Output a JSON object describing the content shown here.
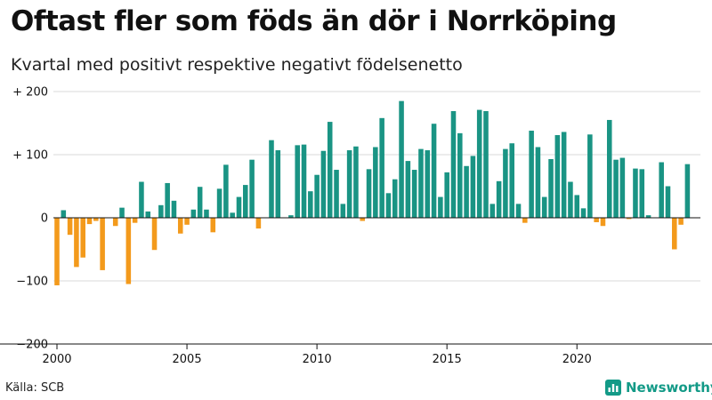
{
  "title": "Oftast fler som föds än dör i Norrköping",
  "subtitle": "Kvartal med positivt respektive negativt födelsenetto",
  "source": "Källa: SCB",
  "brand": "Newsworthy",
  "colors": {
    "positive": "#1a9484",
    "negative": "#f39a1c",
    "grid": "#d9d9d9",
    "axis": "#111111",
    "brand": "#139a87"
  },
  "chart_data": {
    "type": "bar",
    "title": "Oftast fler som föds än dör i Norrköping",
    "subtitle": "Kvartal med positivt respektive negativt födelsenetto",
    "xlabel": "",
    "ylabel": "",
    "grid": true,
    "ylim": [
      -200,
      200
    ],
    "xlim": [
      2000,
      2024.75
    ],
    "x_start": 2000,
    "x_step": 0.25,
    "y_ticks": [
      {
        "value": 200,
        "label": "+ 200"
      },
      {
        "value": 100,
        "label": "+ 100"
      },
      {
        "value": 0,
        "label": "0"
      },
      {
        "value": -100,
        "label": "−100"
      },
      {
        "value": -200,
        "label": "−200"
      }
    ],
    "x_ticks": [
      {
        "value": 2000,
        "label": "2000"
      },
      {
        "value": 2005,
        "label": "2005"
      },
      {
        "value": 2010,
        "label": "2010"
      },
      {
        "value": 2015,
        "label": "2015"
      },
      {
        "value": 2020,
        "label": "2020"
      }
    ],
    "values": [
      -107,
      12,
      -27,
      -78,
      -63,
      -10,
      -5,
      -83,
      0,
      -13,
      16,
      -105,
      -8,
      57,
      10,
      -51,
      20,
      55,
      27,
      -25,
      -11,
      13,
      49,
      13,
      -23,
      46,
      84,
      8,
      33,
      52,
      92,
      -17,
      0,
      123,
      107,
      0,
      4,
      115,
      116,
      42,
      68,
      106,
      152,
      76,
      22,
      107,
      113,
      -5,
      77,
      112,
      158,
      39,
      61,
      185,
      90,
      76,
      109,
      107,
      149,
      33,
      72,
      169,
      134,
      82,
      98,
      171,
      169,
      22,
      58,
      109,
      118,
      22,
      -8,
      138,
      112,
      33,
      93,
      131,
      136,
      57,
      36,
      15,
      132,
      -7,
      -13,
      155,
      92,
      95,
      -2,
      78,
      77,
      4,
      0,
      88,
      50,
      -50,
      -11,
      85
    ]
  }
}
